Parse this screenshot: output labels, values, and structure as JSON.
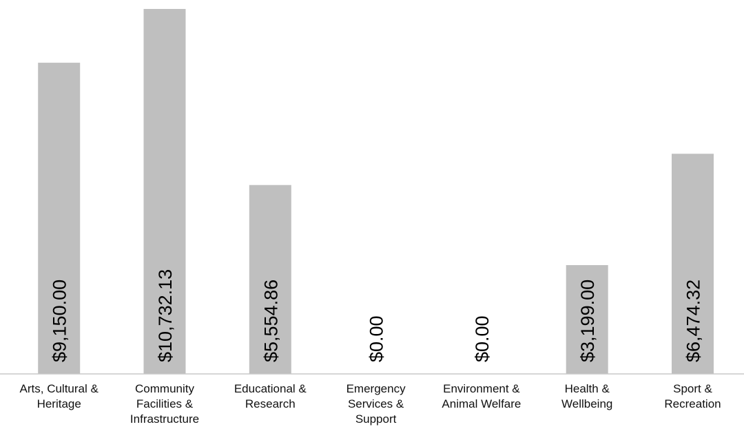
{
  "chart_data": {
    "type": "bar",
    "title": "",
    "xlabel": "",
    "ylabel": "",
    "grid": false,
    "legend": "none",
    "categories": [
      "Arts, Cultural & Heritage",
      "Community Facilities & Infrastructure",
      "Educational & Research",
      "Emergency Services & Support",
      "Environment & Animal Welfare",
      "Health & Wellbeing",
      "Sport & Recreation"
    ],
    "category_lines": [
      [
        "Arts, Cultural &",
        "Heritage"
      ],
      [
        "Community",
        "Facilities &",
        "Infrastructure"
      ],
      [
        "Educational &",
        "Research"
      ],
      [
        "Emergency",
        "Services &",
        "Support"
      ],
      [
        "Environment &",
        "Animal Welfare"
      ],
      [
        "Health &",
        "Wellbeing"
      ],
      [
        "Sport &",
        "Recreation"
      ]
    ],
    "values": [
      9150.0,
      10732.13,
      5554.86,
      0.0,
      0.0,
      3199.0,
      6474.32
    ],
    "data_labels": [
      "$9,150.00",
      "$10,732.13",
      "$5,554.86",
      "$0.00",
      "$0.00",
      "$3,199.00",
      "$6,474.32"
    ],
    "ylim": [
      0,
      10732.13
    ],
    "colors": {
      "bar": "#bfbfbf",
      "axis": "#c8c8c8",
      "text": "#000000"
    }
  }
}
